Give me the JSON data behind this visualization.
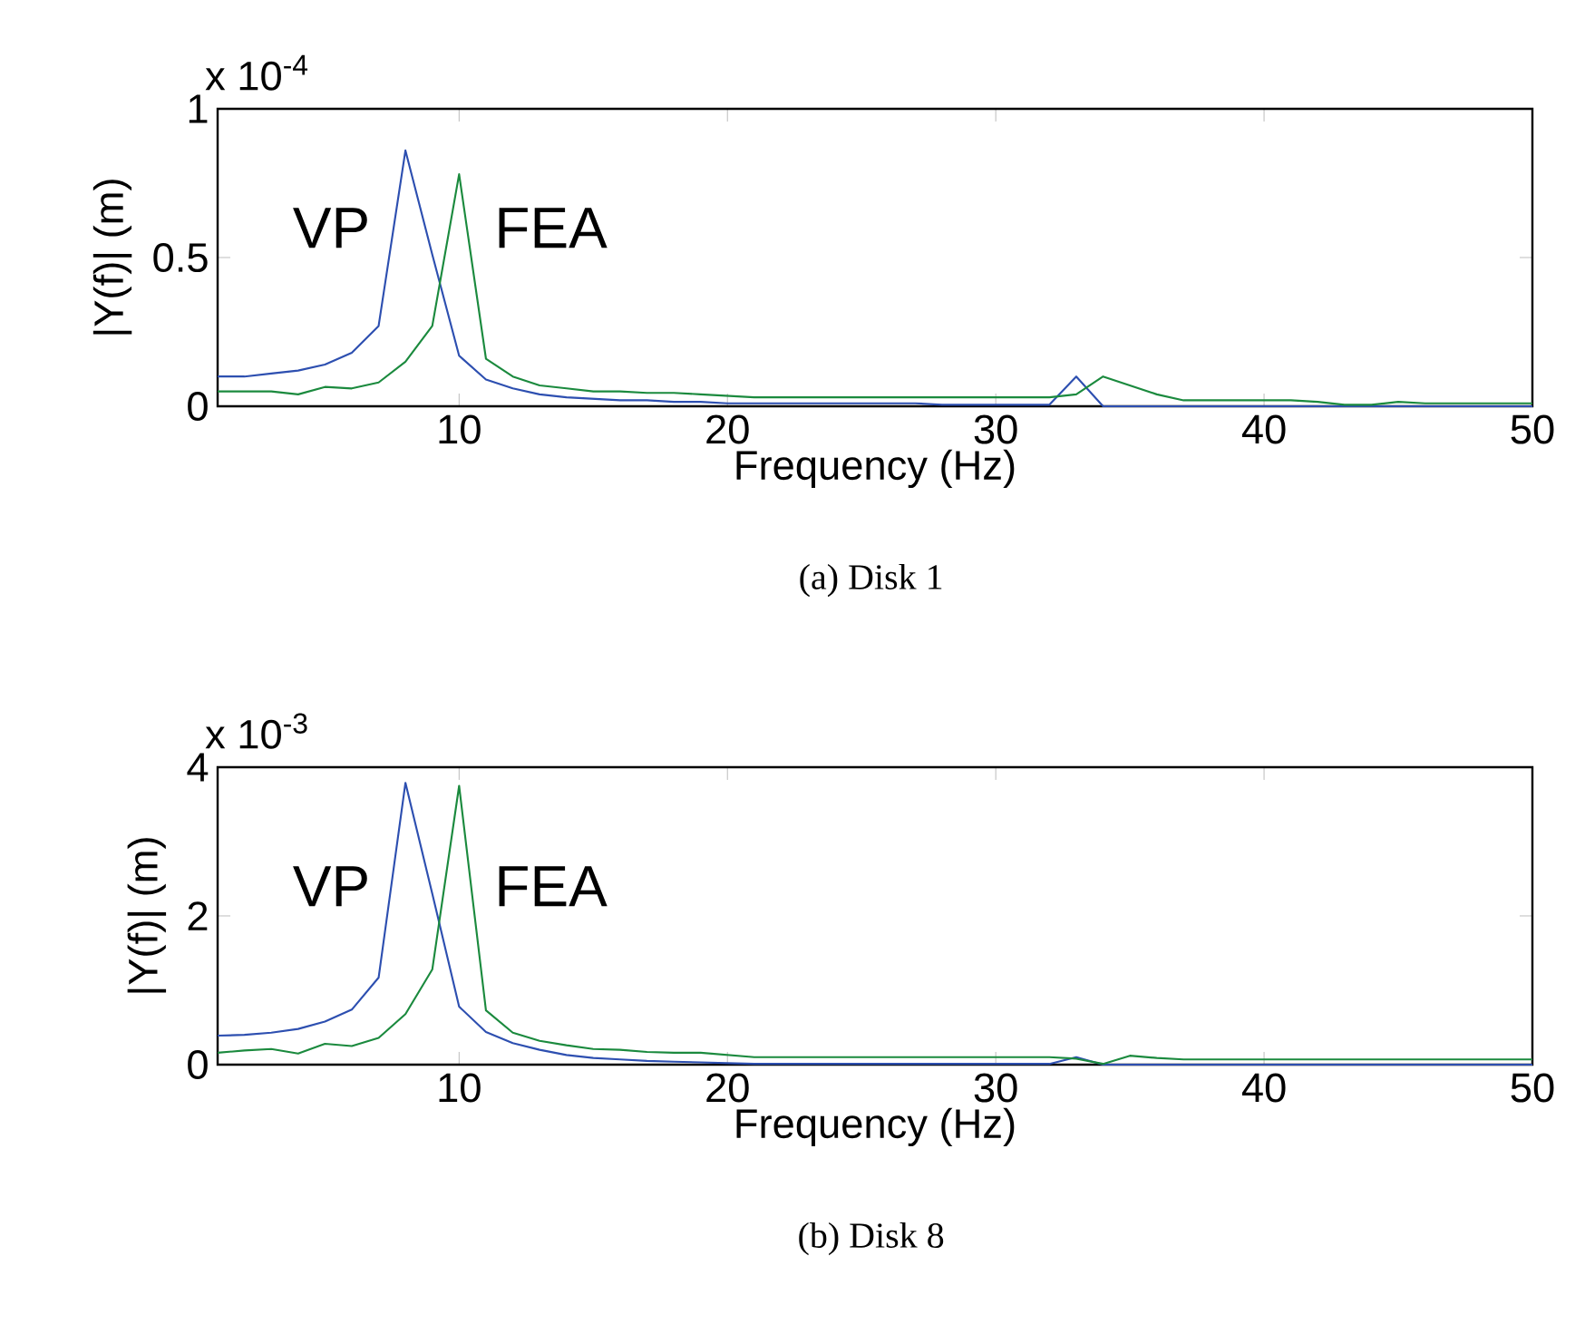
{
  "chart_data": [
    {
      "type": "line",
      "xlabel": "Frequency (Hz)",
      "ylabel": "|Y(f)| (m)",
      "annotations": [
        "x 10$^{-4}$",
        "(a) Disk 1"
      ],
      "x": [
        1,
        2,
        3,
        4,
        5,
        6,
        7,
        8,
        9,
        10,
        11,
        12,
        13,
        14,
        15,
        16,
        17,
        18,
        19,
        20,
        21,
        22,
        23,
        24,
        25,
        26,
        27,
        28,
        29,
        30,
        31,
        32,
        33,
        34,
        35,
        36,
        37,
        38,
        39,
        40,
        41,
        42,
        43,
        44,
        45,
        46,
        47,
        48,
        49,
        50
      ],
      "series": [
        {
          "name": "VP",
          "color": "#2d4fb0",
          "values": [
            0.1,
            0.1,
            0.11,
            0.12,
            0.14,
            0.18,
            0.27,
            0.86,
            0.51,
            0.17,
            0.09,
            0.06,
            0.04,
            0.03,
            0.025,
            0.02,
            0.02,
            0.015,
            0.015,
            0.01,
            0.01,
            0.01,
            0.01,
            0.01,
            0.01,
            0.01,
            0.01,
            0.005,
            0.005,
            0.005,
            0.005,
            0.005,
            0.1,
            0,
            0,
            0,
            0,
            0,
            0,
            0,
            0,
            0,
            0,
            0,
            0,
            0,
            0,
            0,
            0,
            0
          ]
        },
        {
          "name": "FEA",
          "color": "#1b8a3e",
          "values": [
            0.05,
            0.05,
            0.05,
            0.04,
            0.065,
            0.06,
            0.08,
            0.15,
            0.27,
            0.78,
            0.16,
            0.1,
            0.07,
            0.06,
            0.05,
            0.05,
            0.045,
            0.045,
            0.04,
            0.035,
            0.03,
            0.03,
            0.03,
            0.03,
            0.03,
            0.03,
            0.03,
            0.03,
            0.03,
            0.03,
            0.03,
            0.03,
            0.04,
            0.1,
            0.07,
            0.04,
            0.02,
            0.02,
            0.02,
            0.02,
            0.02,
            0.015,
            0.005,
            0.005,
            0.015,
            0.01,
            0.01,
            0.01,
            0.01,
            0.01
          ]
        }
      ],
      "xlim": [
        1,
        50
      ],
      "xticks": [
        10,
        20,
        30,
        40,
        50
      ],
      "ylim": [
        0,
        1
      ],
      "yticks": [
        0,
        0.5,
        1
      ]
    },
    {
      "type": "line",
      "xlabel": "Frequency (Hz)",
      "ylabel": "|Y(f)| (m)",
      "annotations": [
        "x 10$^{-3}$",
        "(b) Disk 8"
      ],
      "x": [
        1,
        2,
        3,
        4,
        5,
        6,
        7,
        8,
        9,
        10,
        11,
        12,
        13,
        14,
        15,
        16,
        17,
        18,
        19,
        20,
        21,
        22,
        23,
        24,
        25,
        26,
        27,
        28,
        29,
        30,
        31,
        32,
        33,
        34,
        35,
        36,
        37,
        38,
        39,
        40,
        41,
        42,
        43,
        44,
        45,
        46,
        47,
        48,
        49,
        50
      ],
      "series": [
        {
          "name": "VP",
          "color": "#2d4fb0",
          "values": [
            0.39,
            0.4,
            0.43,
            0.48,
            0.58,
            0.74,
            1.17,
            3.79,
            2.3,
            0.78,
            0.44,
            0.29,
            0.2,
            0.13,
            0.09,
            0.07,
            0.05,
            0.04,
            0.03,
            0.02,
            0.01,
            0.01,
            0.01,
            0.01,
            0.01,
            0.01,
            0.01,
            0.01,
            0.01,
            0.01,
            0.01,
            0.01,
            0.1,
            0,
            0,
            0,
            0,
            0,
            0,
            0,
            0,
            0,
            0,
            0,
            0,
            0,
            0,
            0,
            0,
            0
          ]
        },
        {
          "name": "FEA",
          "color": "#1b8a3e",
          "values": [
            0.16,
            0.19,
            0.21,
            0.15,
            0.28,
            0.25,
            0.36,
            0.68,
            1.28,
            3.75,
            0.73,
            0.43,
            0.32,
            0.26,
            0.21,
            0.2,
            0.17,
            0.16,
            0.16,
            0.13,
            0.1,
            0.1,
            0.1,
            0.1,
            0.1,
            0.1,
            0.1,
            0.1,
            0.1,
            0.1,
            0.1,
            0.1,
            0.08,
            0.01,
            0.12,
            0.09,
            0.07,
            0.07,
            0.07,
            0.07,
            0.07,
            0.07,
            0.07,
            0.07,
            0.07,
            0.07,
            0.07,
            0.07,
            0.07,
            0.07
          ]
        }
      ],
      "xlim": [
        1,
        50
      ],
      "xticks": [
        10,
        20,
        30,
        40,
        50
      ],
      "ylim": [
        0,
        4
      ],
      "yticks": [
        0,
        2,
        4
      ]
    }
  ]
}
